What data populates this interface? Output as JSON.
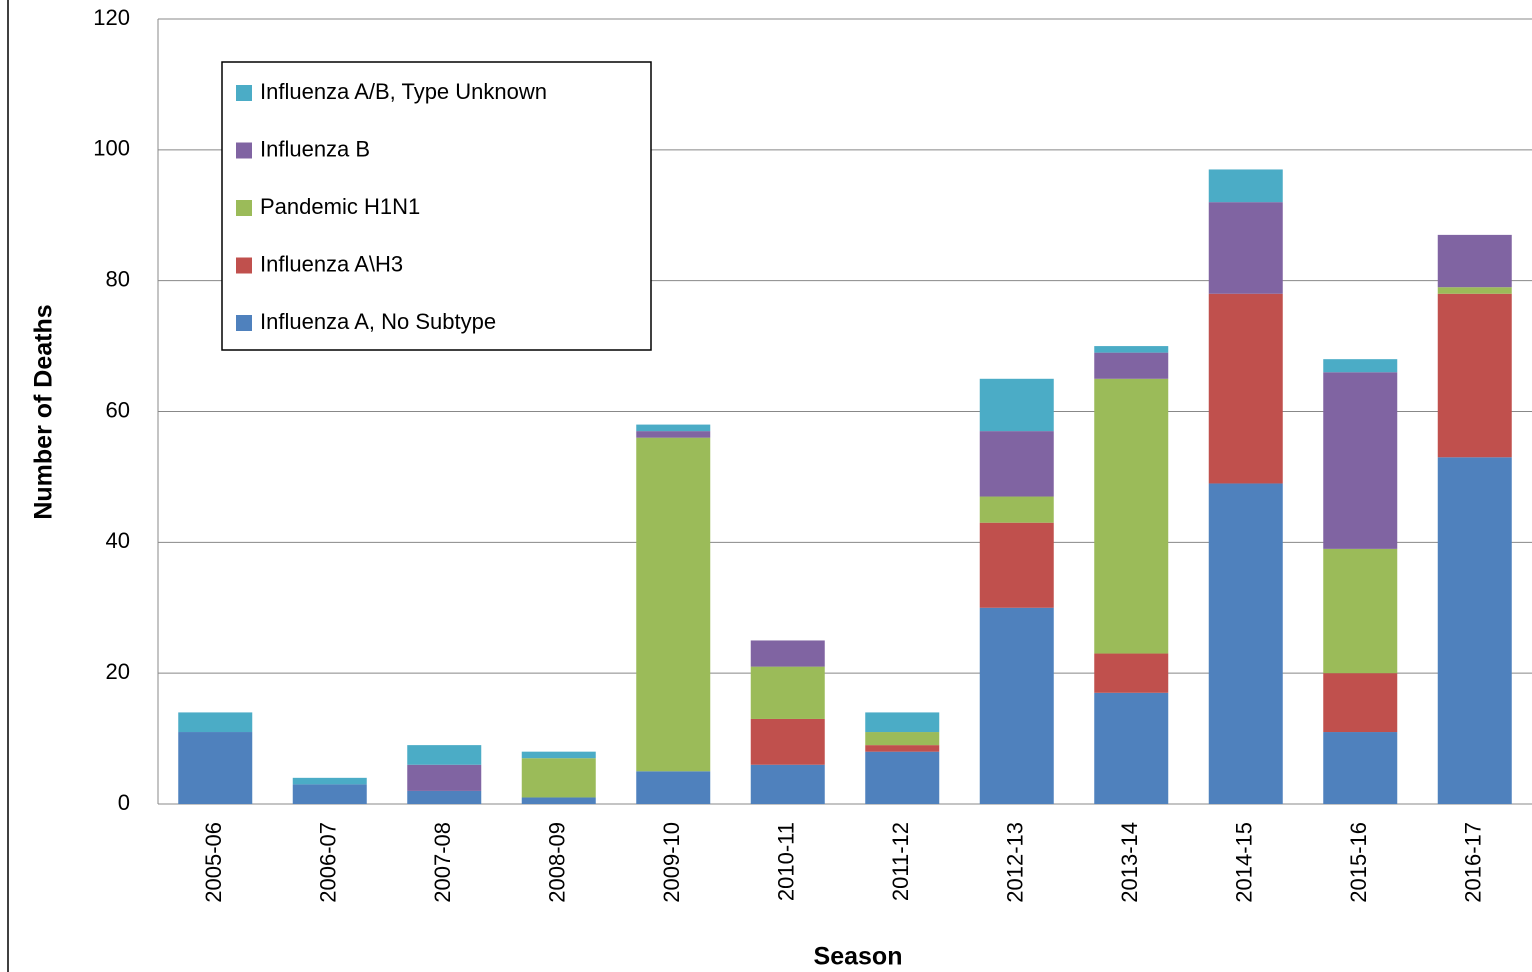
{
  "chart_data": {
    "type": "stacked-bar",
    "x_label": "Season",
    "y_label": "Number of Deaths",
    "categories": [
      "2005-06",
      "2006-07",
      "2007-08",
      "2008-09",
      "2009-10",
      "2010-11",
      "2011-12",
      "2012-13",
      "2013-14",
      "2014-15",
      "2015-16",
      "2016-17"
    ],
    "series": [
      {
        "name": "Influenza A, No Subtype",
        "color": "#4f81bd",
        "values": [
          11,
          3,
          2,
          1,
          5,
          6,
          8,
          30,
          17,
          49,
          11,
          53
        ]
      },
      {
        "name": "Influenza A\\H3",
        "color": "#c0504d",
        "values": [
          0,
          0,
          0,
          0,
          0,
          7,
          1,
          13,
          6,
          29,
          9,
          25
        ]
      },
      {
        "name": "Pandemic H1N1",
        "color": "#9bbb59",
        "values": [
          0,
          0,
          0,
          6,
          51,
          8,
          2,
          4,
          42,
          0,
          19,
          1
        ]
      },
      {
        "name": "Influenza B",
        "color": "#8064a2",
        "values": [
          0,
          0,
          4,
          0,
          1,
          4,
          0,
          10,
          4,
          14,
          27,
          8
        ]
      },
      {
        "name": "Influenza A/B, Type Unknown",
        "color": "#4bacc6",
        "values": [
          3,
          1,
          3,
          1,
          1,
          0,
          3,
          8,
          1,
          5,
          2,
          0
        ]
      }
    ],
    "ylim": [
      0,
      120
    ],
    "yticks": [
      0,
      20,
      40,
      60,
      80,
      100,
      120
    ],
    "grid": true,
    "legend": "upper left"
  }
}
